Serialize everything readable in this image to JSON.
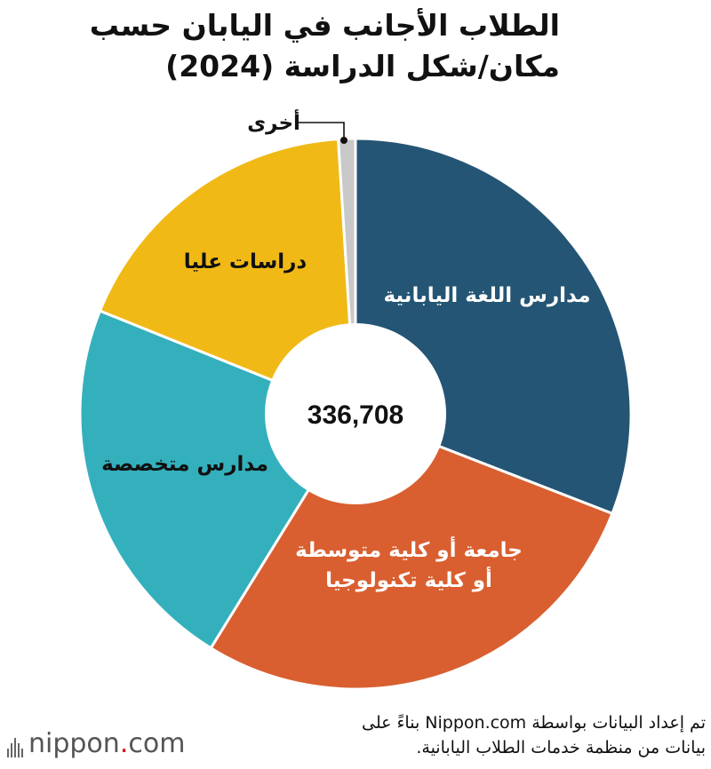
{
  "header": {
    "title_line1": "الطلاب الأجانب في اليابان حسب",
    "title_line2": "مكان/شكل الدراسة (2024)"
  },
  "chart_data": {
    "type": "pie",
    "variant": "donut",
    "total_label": "336,708",
    "slices": [
      {
        "label": "مدارس اللغة اليابانية",
        "value": 30.9,
        "color": "#245574",
        "text_color": "#ffffff"
      },
      {
        "label": "جامعة أو كلية متوسطة أو كلية تكنولوجيا",
        "label_lines": [
          "جامعة أو كلية متوسطة",
          "أو كلية تكنولوجيا"
        ],
        "value": 27.9,
        "color": "#d95f30",
        "text_color": "#ffffff"
      },
      {
        "label": "مدارس متخصصة",
        "label_lines": [
          "مدارس متخصصة"
        ],
        "value": 22.3,
        "color": "#34b0bd",
        "text_color": "#111111"
      },
      {
        "label": "دراسات عليا",
        "label_lines": [
          "دراسات عليا"
        ],
        "value": 17.9,
        "color": "#f0b916",
        "text_color": "#111111"
      },
      {
        "label": "أخرى",
        "label_lines": [
          "أخرى"
        ],
        "value": 1.0,
        "color": "#c8c8c8",
        "text_color": "#111111"
      }
    ],
    "legend": "none"
  },
  "footer": {
    "source_line1": "تم إعداد البيانات بواسطة Nippon.com بناءً على",
    "source_line2": "بيانات من منظمة خدمات الطلاب اليابانية.",
    "logo_text_main": "nippon",
    "logo_text_dot": ".",
    "logo_text_tld": "com"
  }
}
